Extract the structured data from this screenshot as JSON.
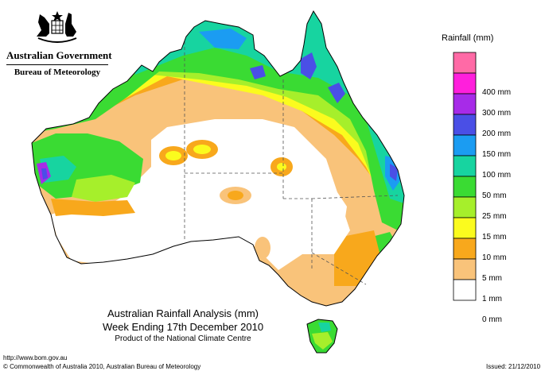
{
  "organisation": {
    "government": "Australian Government",
    "bureau": "Bureau of Meteorology"
  },
  "map_title": {
    "line1": "Australian Rainfall Analysis (mm)",
    "line2": "Week Ending 17th December 2010",
    "line3": "Product of the National Climate Centre"
  },
  "legend": {
    "title": "Rainfall (mm)",
    "items": [
      {
        "label": "",
        "color": "#ff6aa6"
      },
      {
        "label": "400 mm",
        "color": "#ff1fdc"
      },
      {
        "label": "300 mm",
        "color": "#a72be8"
      },
      {
        "label": "200 mm",
        "color": "#4a4fe6"
      },
      {
        "label": "150 mm",
        "color": "#1b9cf2"
      },
      {
        "label": "100 mm",
        "color": "#17d4a0"
      },
      {
        "label": "50 mm",
        "color": "#3adb33"
      },
      {
        "label": "25 mm",
        "color": "#a6ef2b"
      },
      {
        "label": "15 mm",
        "color": "#fbfb1e"
      },
      {
        "label": "10 mm",
        "color": "#f8a81c"
      },
      {
        "label": "5 mm",
        "color": "#f9c37a"
      },
      {
        "label": "1 mm",
        "color": "#ffffff"
      },
      {
        "label": "0 mm",
        "color": ""
      }
    ]
  },
  "footer": {
    "url": "http://www.bom.gov.au",
    "copyright": "© Commonwealth of Australia 2010, Australian Bureau of Meteorology",
    "issued": "Issued: 21/12/2010"
  },
  "colors": {
    "zero": "#ffffff",
    "light": "#f9c37a",
    "orange": "#f8a81c",
    "yellow": "#fbfb1e",
    "lime": "#a6ef2b",
    "green": "#3adb33",
    "teal": "#17d4a0",
    "cyan": "#1b9cf2",
    "blue": "#4a4fe6",
    "purple": "#a72be8"
  }
}
